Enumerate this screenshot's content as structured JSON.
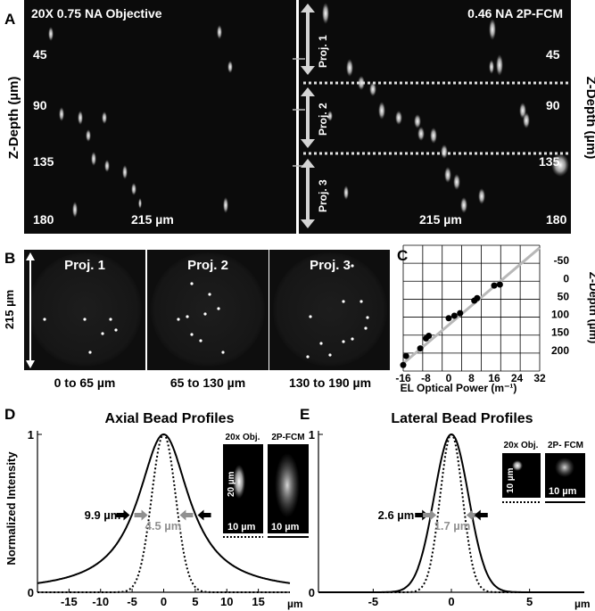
{
  "panels": {
    "a": {
      "letter": "A"
    },
    "b": {
      "letter": "B"
    },
    "c": {
      "letter": "C"
    },
    "d": {
      "letter": "D"
    },
    "e": {
      "letter": "E"
    }
  },
  "panel_a": {
    "left_title": "20X 0.75 NA Objective",
    "right_title": "0.46 NA 2P-FCM",
    "left_depths": [
      "45",
      "90",
      "135",
      "180"
    ],
    "right_depths": [
      "45",
      "90",
      "135",
      "180"
    ],
    "left_axis_label": "Z-Depth (µm)",
    "right_axis_label": "Z-Depth (µm)",
    "left_width_label": "215 µm",
    "right_width_label": "215 µm",
    "projections": [
      "Proj. 1",
      "Proj. 2",
      "Proj. 3"
    ]
  },
  "panel_b": {
    "scale_label": "215 µm",
    "projections": [
      {
        "title": "Proj. 1",
        "range": "0 to 65 µm"
      },
      {
        "title": "Proj. 2",
        "range": "65 to 130 µm"
      },
      {
        "title": "Proj. 3",
        "range": "130 to 190 µm"
      }
    ]
  },
  "chart_data": [
    {
      "type": "scatter",
      "title": "",
      "xlabel": "EL Optical Power (m⁻¹)",
      "ylabel": "Z-Depth (µm)",
      "xlim": [
        -16,
        32
      ],
      "ylim": [
        -50,
        200
      ],
      "y_inverted": true,
      "y_axis_side": "right",
      "grid": true,
      "xticks": [
        -16,
        -8,
        0,
        8,
        16,
        24,
        32
      ],
      "yticks": [
        -50,
        0,
        50,
        100,
        150,
        200
      ],
      "x": [
        -16,
        -15,
        -10,
        -8,
        -7,
        0,
        2,
        4,
        9,
        10,
        16,
        18
      ],
      "y": [
        188,
        170,
        155,
        135,
        130,
        95,
        90,
        85,
        60,
        55,
        30,
        28
      ],
      "fit_line": {
        "x": [
          -16,
          32
        ],
        "y": [
          185,
          -45
        ]
      }
    },
    {
      "type": "line",
      "title": "Axial Bead Profiles",
      "xlabel": "µm",
      "ylabel": "Normalized Intensity",
      "xlim": [
        -20,
        20
      ],
      "ylim": [
        0,
        1
      ],
      "xticks": [
        -15,
        -10,
        -5,
        0,
        5,
        10,
        15
      ],
      "yticks": [
        0,
        1
      ],
      "series": [
        {
          "style": "solid",
          "fwhm": 9.9
        },
        {
          "style": "dotted",
          "fwhm": 4.5
        }
      ],
      "annotations": [
        "9.9 µm",
        "4.5 µm"
      ],
      "inset_labels": [
        "20x Obj.",
        "2P-FCM",
        "20 µm",
        "10 µm",
        "10 µm"
      ]
    },
    {
      "type": "line",
      "title": "Lateral Bead Profiles",
      "xlabel": "µm",
      "ylabel": "",
      "xlim": [
        -8.5,
        8.5
      ],
      "ylim": [
        0,
        1
      ],
      "xticks": [
        -5,
        0,
        5
      ],
      "yticks": [
        0,
        1
      ],
      "series": [
        {
          "style": "solid",
          "fwhm": 2.6
        },
        {
          "style": "dotted",
          "fwhm": 1.7
        }
      ],
      "annotations": [
        "2.6 µm",
        "1.7 µm"
      ],
      "inset_labels": [
        "20x Obj.",
        "2P- FCM",
        "10 µm",
        "10 µm"
      ]
    }
  ]
}
